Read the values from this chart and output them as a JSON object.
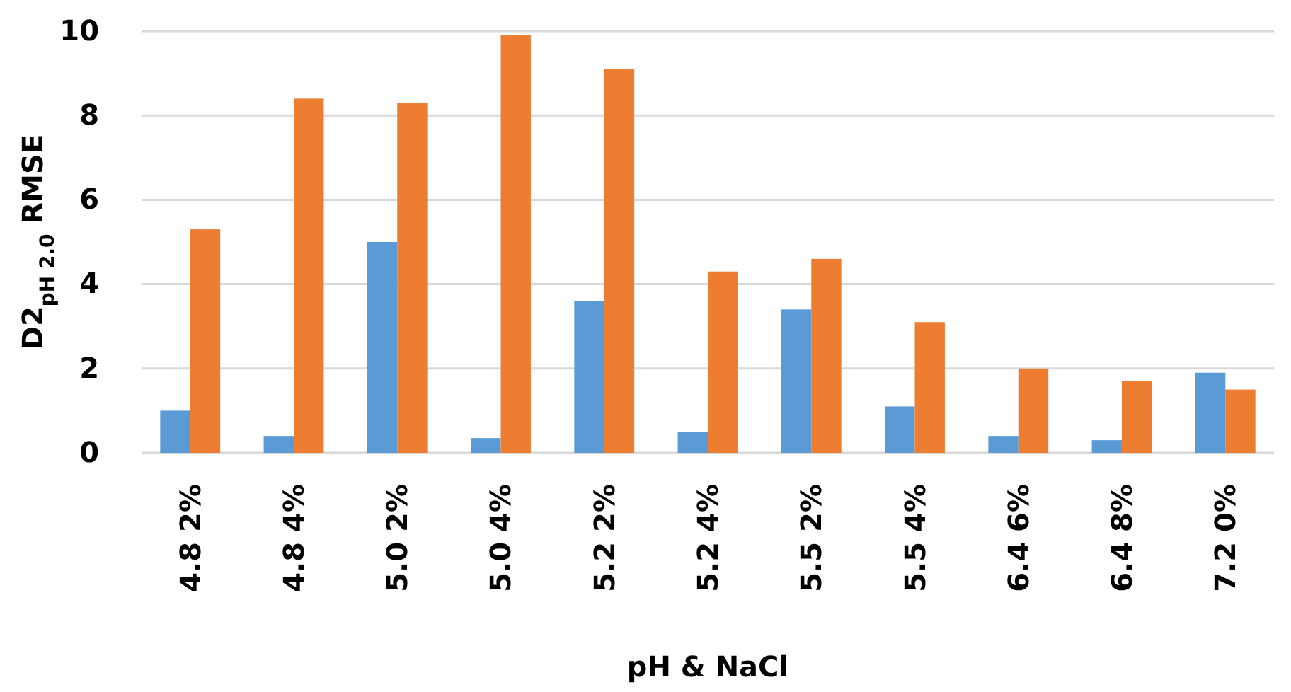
{
  "chart_data": {
    "type": "bar",
    "xlabel": "pH & NaCl",
    "ylabel": "D2$_{pH 2.0}$ RMSE",
    "categories": [
      "4.8 2%",
      "4.8 4%",
      "5.0 2%",
      "5.0 4%",
      "5.2 2%",
      "5.2 4%",
      "5.5 2%",
      "5.5 4%",
      "6.4 6%",
      "6.4 8%",
      "7.2 0%"
    ],
    "series": [
      {
        "color": "#5b9bd5",
        "values": [
          1.0,
          0.4,
          5.0,
          0.35,
          3.6,
          0.5,
          3.4,
          1.1,
          0.4,
          0.3,
          1.9
        ]
      },
      {
        "color": "#ed7d31",
        "values": [
          5.3,
          8.4,
          8.3,
          9.9,
          9.1,
          4.3,
          4.6,
          3.1,
          2.0,
          1.7,
          1.5
        ]
      }
    ],
    "ylim": [
      0,
      10
    ],
    "yticks": [
      0,
      2,
      4,
      6,
      8,
      10
    ],
    "grid": "y"
  }
}
